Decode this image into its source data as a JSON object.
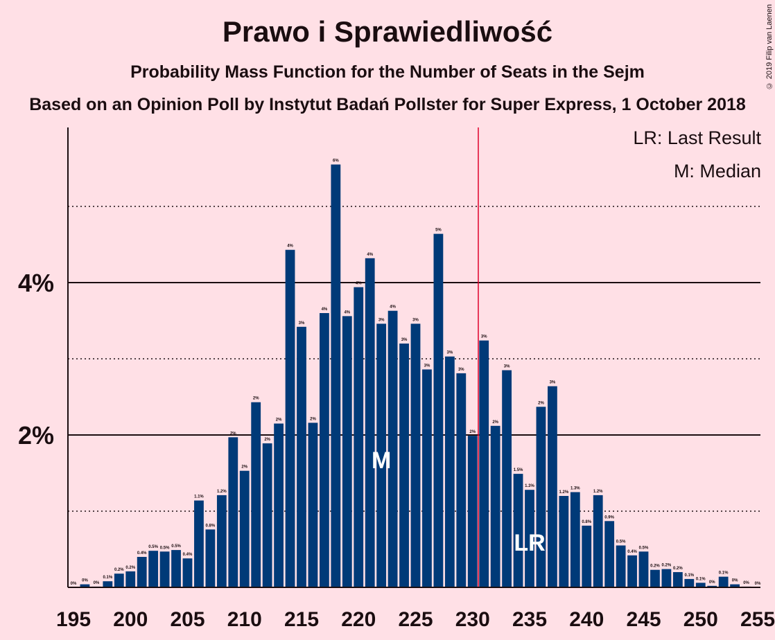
{
  "header": {
    "title": "Prawo i Sprawiedliwość",
    "subtitle": "Probability Mass Function for the Number of Seats in the Sejm",
    "source": "Based on an Opinion Poll by Instytut Badań Pollster for Super Express, 1 October 2018",
    "copyright": "© 2019 Filip van Laenen"
  },
  "legend": {
    "last_result": "LR: Last Result",
    "median": "M: Median"
  },
  "chart_data": {
    "type": "bar",
    "title": "Prawo i Sprawiedliwość",
    "subtitle": "Probability Mass Function for the Number of Seats in the Sejm",
    "xlabel": "",
    "ylabel": "",
    "x": [
      195,
      196,
      197,
      198,
      199,
      200,
      201,
      202,
      203,
      204,
      205,
      206,
      207,
      208,
      209,
      210,
      211,
      212,
      213,
      214,
      215,
      216,
      217,
      218,
      219,
      220,
      221,
      222,
      223,
      224,
      225,
      226,
      227,
      228,
      229,
      230,
      231,
      232,
      233,
      234,
      235,
      236,
      237,
      238,
      239,
      240,
      241,
      242,
      243,
      244,
      245,
      246,
      247,
      248,
      249,
      250,
      251,
      252,
      253,
      254,
      255
    ],
    "values": [
      0.0,
      0.04,
      0.01,
      0.08,
      0.18,
      0.21,
      0.4,
      0.48,
      0.47,
      0.49,
      0.38,
      1.14,
      0.76,
      1.21,
      1.97,
      1.53,
      2.43,
      1.89,
      2.15,
      4.43,
      3.42,
      2.16,
      3.6,
      5.55,
      3.56,
      3.94,
      4.32,
      3.46,
      3.63,
      3.2,
      3.46,
      2.86,
      4.64,
      3.03,
      2.81,
      1.99,
      3.24,
      2.12,
      2.85,
      1.49,
      1.28,
      2.37,
      2.64,
      1.2,
      1.25,
      0.81,
      1.21,
      0.87,
      0.55,
      0.42,
      0.47,
      0.23,
      0.24,
      0.2,
      0.11,
      0.06,
      0.02,
      0.14,
      0.04,
      0.01,
      0.0
    ],
    "value_labels": [
      "0%",
      "0%",
      "0%",
      "0.1%",
      "0.2%",
      "0.2%",
      "0.4%",
      "0.5%",
      "0.5%",
      "0.5%",
      "0.4%",
      "1.1%",
      "0.8%",
      "1.2%",
      "2%",
      "2%",
      "2%",
      "2%",
      "2%",
      "4%",
      "3%",
      "2%",
      "4%",
      "6%",
      "4%",
      "4%",
      "4%",
      "3%",
      "4%",
      "3%",
      "3%",
      "3%",
      "5%",
      "3%",
      "3%",
      "2%",
      "3%",
      "2%",
      "3%",
      "1.5%",
      "1.3%",
      "2%",
      "3%",
      "1.2%",
      "1.3%",
      "0.8%",
      "1.2%",
      "0.9%",
      "0.5%",
      "0.4%",
      "0.5%",
      "0.2%",
      "0.2%",
      "0.2%",
      "0.1%",
      "0.1%",
      "0%",
      "0.1%",
      "0%",
      "0%",
      "0%"
    ],
    "xlim": [
      195,
      255
    ],
    "ylim": [
      0,
      6
    ],
    "x_ticks": [
      195,
      200,
      205,
      210,
      215,
      220,
      225,
      230,
      235,
      240,
      245,
      250,
      255
    ],
    "y_major_ticks": [
      2,
      4
    ],
    "y_tick_labels": [
      "2%",
      "4%"
    ],
    "y_minor_gridlines": [
      1,
      3,
      5
    ],
    "majority_line_x": 230.5,
    "median_seat": 222,
    "median_marker": "M",
    "last_result_seat": 235,
    "last_result_marker": "LR",
    "colors": {
      "bar": "#003A78",
      "majority_line": "#E0002A",
      "background": "#FFE0E6",
      "text": "#1a0d10"
    }
  }
}
